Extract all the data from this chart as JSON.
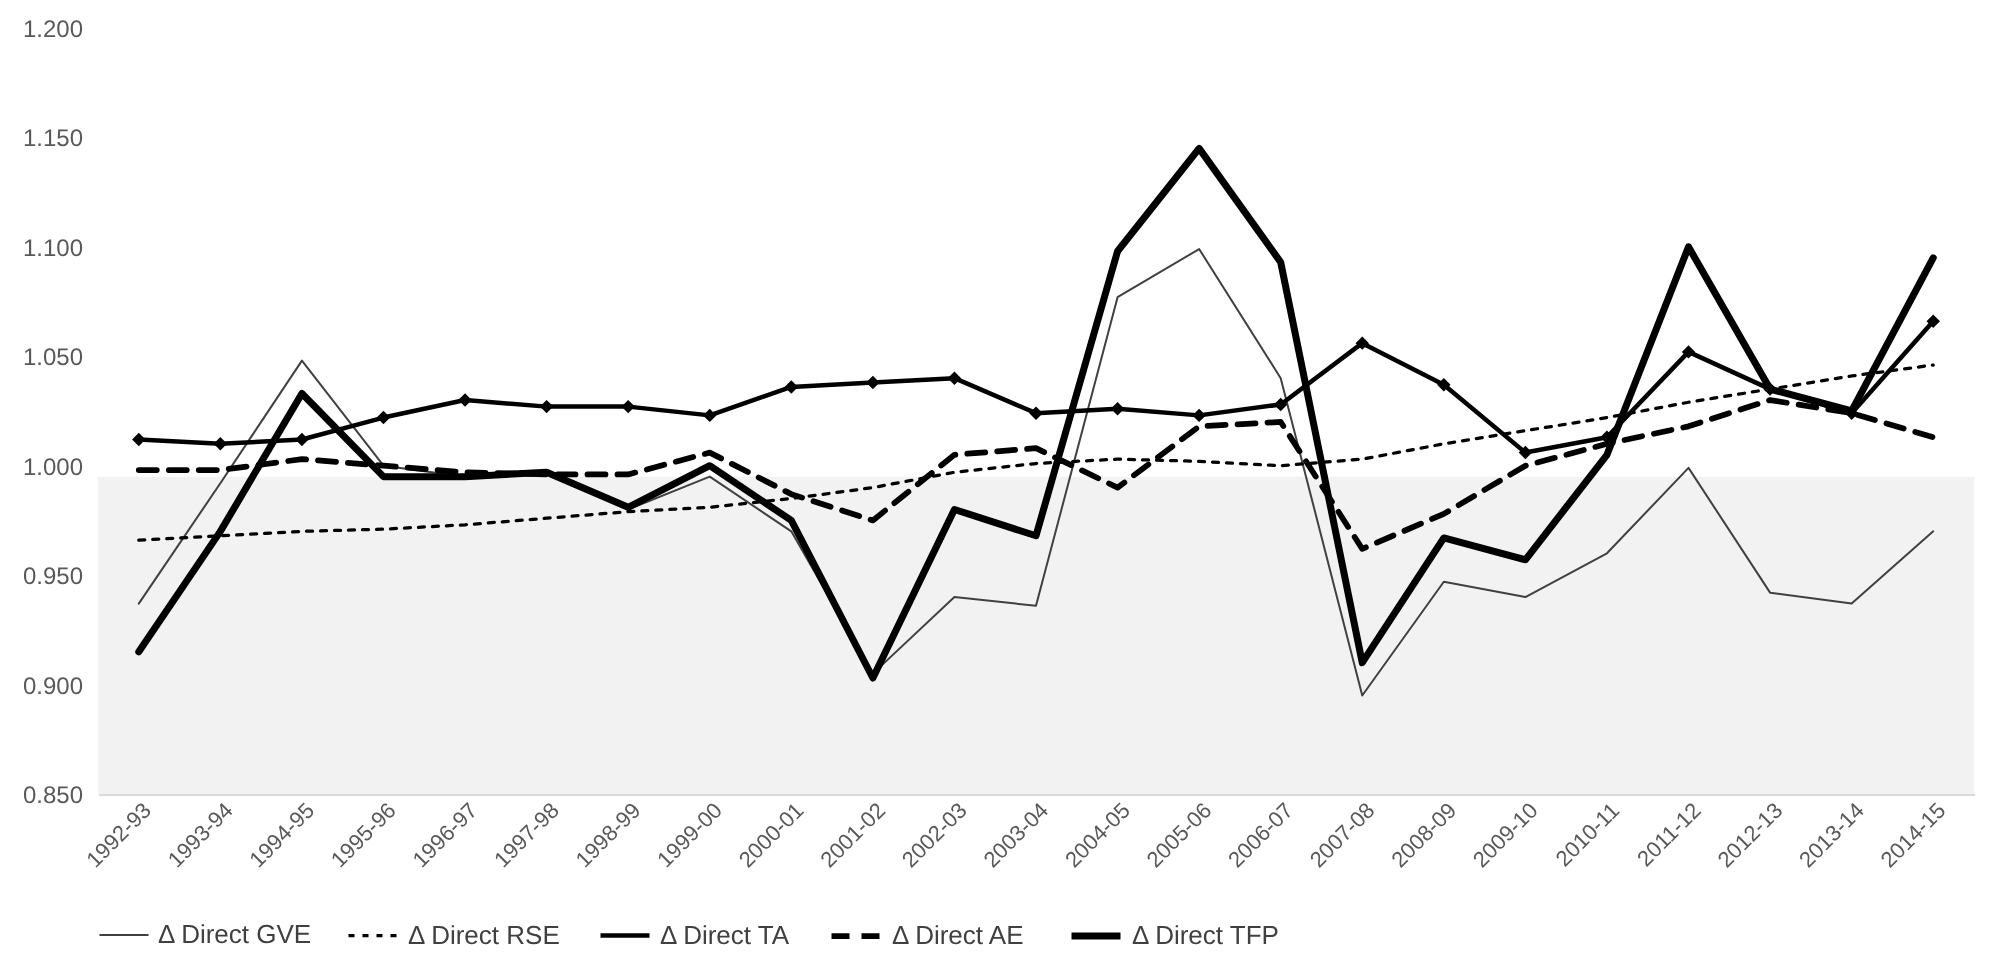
{
  "chart_data": {
    "type": "line",
    "categories": [
      "1992-93",
      "1993-94",
      "1994-95",
      "1995-96",
      "1996-97",
      "1997-98",
      "1998-99",
      "1999-00",
      "2000-01",
      "2001-02",
      "2002-03",
      "2003-04",
      "2004-05",
      "2005-06",
      "2006-07",
      "2007-08",
      "2008-09",
      "2009-10",
      "2010-11",
      "2011-12",
      "2012-13",
      "2013-14",
      "2014-15"
    ],
    "series": [
      {
        "name": "Δ Direct GVE",
        "color": "#404040",
        "line_style": "solid",
        "values": [
          0.937,
          0.992,
          1.048,
          1.0,
          0.995,
          0.997,
          0.98,
          0.995,
          0.97,
          0.905,
          0.94,
          0.936,
          1.077,
          1.099,
          1.04,
          0.895,
          0.947,
          0.94,
          0.96,
          0.999,
          0.942,
          0.937,
          0.97
        ]
      },
      {
        "name": "Δ Direct RSE",
        "color": "#000000",
        "line_style": "dotted",
        "values": [
          0.966,
          0.968,
          0.97,
          0.971,
          0.973,
          0.976,
          0.979,
          0.981,
          0.985,
          0.99,
          0.997,
          1.001,
          1.003,
          1.002,
          1.0,
          1.003,
          1.01,
          1.016,
          1.022,
          1.029,
          1.035,
          1.041,
          1.046
        ]
      },
      {
        "name": "Δ Direct TA",
        "color": "#000000",
        "line_style": "solid",
        "marker": "diamond",
        "values": [
          1.012,
          1.01,
          1.012,
          1.022,
          1.03,
          1.027,
          1.027,
          1.023,
          1.036,
          1.038,
          1.04,
          1.024,
          1.026,
          1.023,
          1.028,
          1.056,
          1.037,
          1.006,
          1.013,
          1.052,
          1.035,
          1.024,
          1.066
        ]
      },
      {
        "name": "Δ Direct AE",
        "color": "#000000",
        "line_style": "dashed",
        "values": [
          0.998,
          0.998,
          1.003,
          1.0,
          0.997,
          0.996,
          0.996,
          1.006,
          0.987,
          0.975,
          1.005,
          1.008,
          0.99,
          1.018,
          1.02,
          0.962,
          0.978,
          1.0,
          1.01,
          1.018,
          1.03,
          1.024,
          1.013
        ]
      },
      {
        "name": "Δ Direct TFP",
        "color": "#000000",
        "line_style": "solid",
        "values": [
          0.915,
          0.97,
          1.033,
          0.995,
          0.995,
          0.997,
          0.981,
          1.0,
          0.975,
          0.903,
          0.98,
          0.968,
          1.098,
          1.145,
          1.093,
          0.91,
          0.967,
          0.957,
          1.005,
          1.1,
          1.035,
          1.025,
          1.095
        ]
      }
    ],
    "ylim": [
      0.85,
      1.2
    ],
    "yticks": [
      {
        "value": 0.85,
        "label": "0.850"
      },
      {
        "value": 0.9,
        "label": "0.900"
      },
      {
        "value": 0.95,
        "label": "0.950"
      },
      {
        "value": 1.0,
        "label": "1.000"
      },
      {
        "value": 1.05,
        "label": "1.050"
      },
      {
        "value": 1.1,
        "label": "1.100"
      },
      {
        "value": 1.15,
        "label": "1.150"
      },
      {
        "value": 1.2,
        "label": "1.200"
      }
    ],
    "bands": [
      {
        "axis": "y",
        "from": 0.85,
        "to": 0.995,
        "color": "#f2f2f2"
      }
    ],
    "grid": false,
    "legend": "bottom"
  }
}
